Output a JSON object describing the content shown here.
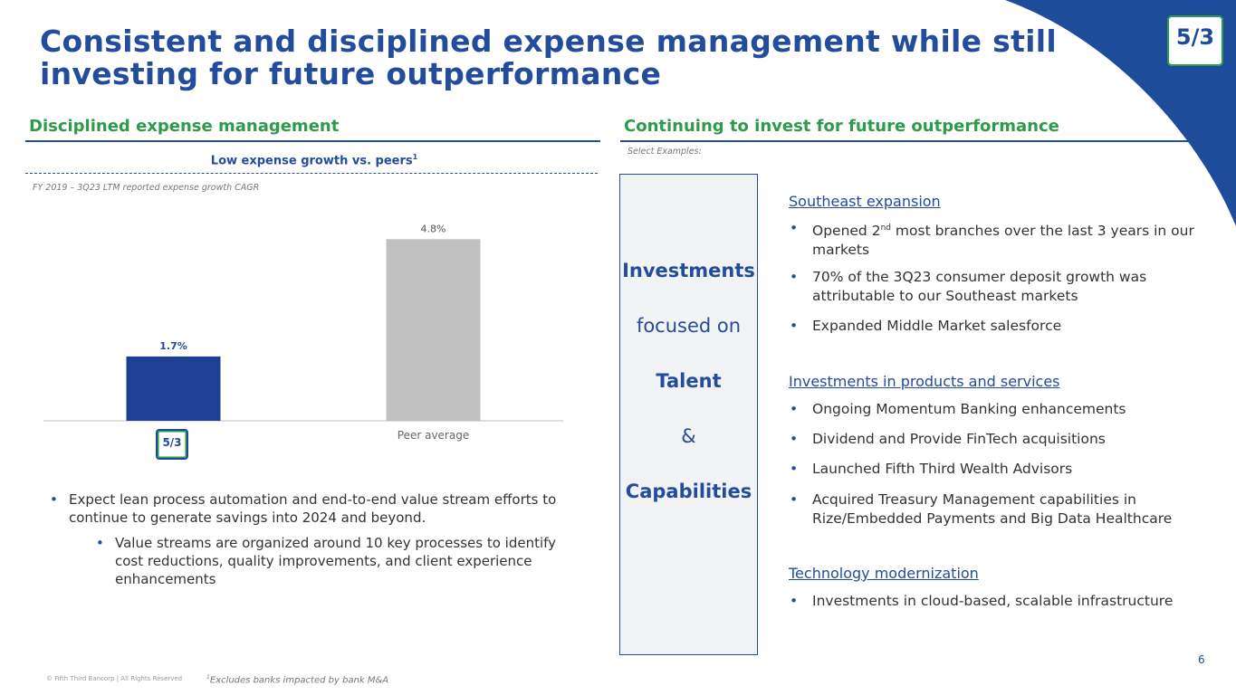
{
  "title": "Consistent and disciplined expense management while still investing for future outperformance",
  "logo_text": "5/3",
  "left": {
    "section_title": "Disciplined expense management",
    "chart_subhead": "Low expense growth vs. peers",
    "chart_subhead_sup": "1",
    "chart_note": "FY 2019 – 3Q23 LTM reported expense growth CAGR",
    "bullets": [
      "Expect lean process automation and end-to-end value stream efforts to continue to generate savings into 2024 and beyond.",
      "Value streams are organized around 10 key processes to identify cost reductions, quality improvements, and client experience enhancements"
    ]
  },
  "chart_data": {
    "type": "bar",
    "title": "Low expense growth vs. peers",
    "subtitle": "FY 2019 – 3Q23 LTM reported expense growth CAGR",
    "categories": [
      "Fifth Third",
      "Peer average"
    ],
    "values": [
      1.7,
      4.8
    ],
    "value_labels": [
      "1.7%",
      "4.8%"
    ],
    "bar_colors": [
      "#1f3f95",
      "#c0c0c0"
    ],
    "ylim": [
      0,
      5.5
    ],
    "xlabel": "",
    "ylabel": "",
    "grid": false
  },
  "right": {
    "section_title": "Continuing to invest for future outperformance",
    "select_examples": "Select Examples:",
    "box": {
      "line1": "Investments",
      "line2": "focused on",
      "line3": "Talent",
      "line4": "&",
      "line5": "Capabilities"
    },
    "groups": [
      {
        "heading": "Southeast expansion",
        "b1_pre": "Opened 2",
        "b1_sup": "nd",
        "b1_post": " most branches over the last 3 years in our markets",
        "b2": "70% of the 3Q23 consumer deposit growth was attributable to our Southeast markets",
        "b3": "Expanded Middle Market salesforce"
      },
      {
        "heading": "Investments in products and services",
        "b1": "Ongoing Momentum Banking enhancements",
        "b2": "Dividend and Provide FinTech acquisitions",
        "b3": "Launched Fifth Third Wealth Advisors",
        "b4": "Acquired Treasury Management capabilities in Rize/Embedded Payments and Big Data Healthcare"
      },
      {
        "heading": "Technology modernization",
        "b1": "Investments in cloud-based, scalable infrastructure"
      }
    ]
  },
  "footer": {
    "page_number": "6",
    "copyright": "© Fifth Third Bancorp | All Rights Reserved",
    "footnote_sup": "1",
    "footnote": "Excludes banks impacted by bank M&A"
  },
  "colors": {
    "brand_blue": "#234c9c",
    "brand_green": "#2e9a4b",
    "peer_gray": "#c0c0c0"
  }
}
